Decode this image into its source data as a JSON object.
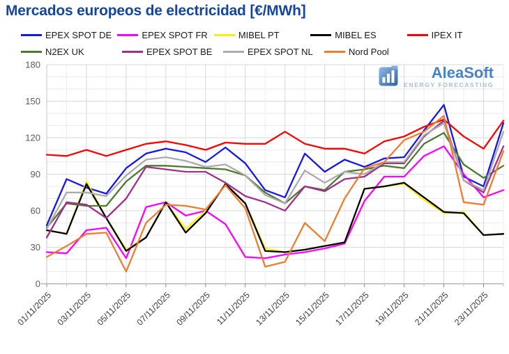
{
  "page_title": "Mercados europeos de electricidad [€/MWh]",
  "logo": {
    "name": "AleaSoft",
    "tagline": "ENERGY FORECASTING"
  },
  "chart_data": {
    "type": "line",
    "title": "Mercados europeos de electricidad [€/MWh]",
    "ylabel": "",
    "xlabel": "",
    "ylim": [
      0,
      180
    ],
    "ytick_step": 30,
    "grid": "on",
    "legend_position": "top",
    "x": [
      "01/11/2025",
      "02/11/2025",
      "03/11/2025",
      "04/11/2025",
      "05/11/2025",
      "06/11/2025",
      "07/11/2025",
      "08/11/2025",
      "09/11/2025",
      "10/11/2025",
      "11/11/2025",
      "12/11/2025",
      "13/11/2025",
      "14/11/2025",
      "15/11/2025",
      "16/11/2025",
      "17/11/2025",
      "18/11/2025",
      "19/11/2025",
      "20/11/2025",
      "21/11/2025",
      "22/11/2025",
      "23/11/2025",
      "24/11/2025"
    ],
    "x_labels_shown": [
      "01/11/2025",
      "03/11/2025",
      "05/11/2025",
      "07/11/2025",
      "09/11/2025",
      "11/11/2025",
      "13/11/2025",
      "15/11/2025",
      "17/11/2025",
      "19/11/2025",
      "21/11/2025",
      "23/11/2025"
    ],
    "y_ticks": [
      0,
      30,
      60,
      90,
      120,
      150,
      180
    ],
    "series": [
      {
        "name": "EPEX SPOT DE",
        "color": "#1616E6",
        "values": [
          48,
          86,
          79,
          74,
          95,
          107,
          111,
          108,
          100,
          112,
          99,
          77,
          71,
          107,
          92,
          102,
          96,
          103,
          104,
          126,
          147,
          88,
          80,
          132
        ]
      },
      {
        "name": "EPEX SPOT FR",
        "color": "#FF00FF",
        "values": [
          26,
          25,
          44,
          46,
          21,
          63,
          67,
          56,
          60,
          49,
          22,
          21,
          24,
          26,
          29,
          33,
          68,
          88,
          88,
          105,
          113,
          90,
          71,
          77
        ]
      },
      {
        "name": "MIBEL PT",
        "color": "#FFF000",
        "values": [
          44,
          41,
          84,
          54,
          28,
          38,
          67,
          45,
          60,
          81,
          66,
          29,
          26,
          28,
          31,
          34,
          78,
          80,
          82,
          69,
          58,
          59,
          40,
          41
        ]
      },
      {
        "name": "MIBEL ES",
        "color": "#000000",
        "values": [
          44,
          41,
          82,
          54,
          27,
          38,
          67,
          42,
          58,
          82,
          66,
          27,
          26,
          28,
          31,
          34,
          78,
          80,
          83,
          71,
          59,
          58,
          40,
          41
        ]
      },
      {
        "name": "IPEX IT",
        "color": "#FF0000",
        "values": [
          106,
          105,
          110,
          105,
          110,
          115,
          117,
          114,
          110,
          116,
          115,
          115,
          125,
          115,
          111,
          111,
          107,
          117,
          121,
          129,
          135,
          121,
          111,
          134
        ]
      },
      {
        "name": "N2EX UK",
        "color": "#4E7A2E",
        "values": [
          46,
          66,
          64,
          64,
          84,
          97,
          97,
          96,
          95,
          94,
          89,
          75,
          66,
          80,
          77,
          92,
          94,
          97,
          95,
          115,
          124,
          98,
          87,
          97
        ]
      },
      {
        "name": "EPEX SPOT BE",
        "color": "#A0308C",
        "values": [
          38,
          67,
          65,
          54,
          70,
          96,
          94,
          92,
          92,
          83,
          72,
          67,
          60,
          80,
          76,
          86,
          88,
          99,
          99,
          121,
          134,
          85,
          75,
          113
        ]
      },
      {
        "name": "EPEX SPOT NL",
        "color": "#ABABAB",
        "values": [
          45,
          75,
          75,
          72,
          89,
          102,
          104,
          101,
          96,
          98,
          89,
          73,
          66,
          93,
          83,
          92,
          90,
          100,
          100,
          122,
          132,
          85,
          77,
          125
        ]
      },
      {
        "name": "Nord Pool",
        "color": "#ED7D31",
        "values": [
          22,
          31,
          41,
          42,
          10,
          50,
          65,
          64,
          61,
          81,
          62,
          14,
          18,
          50,
          35,
          70,
          95,
          100,
          118,
          125,
          138,
          67,
          65,
          109
        ]
      }
    ]
  }
}
